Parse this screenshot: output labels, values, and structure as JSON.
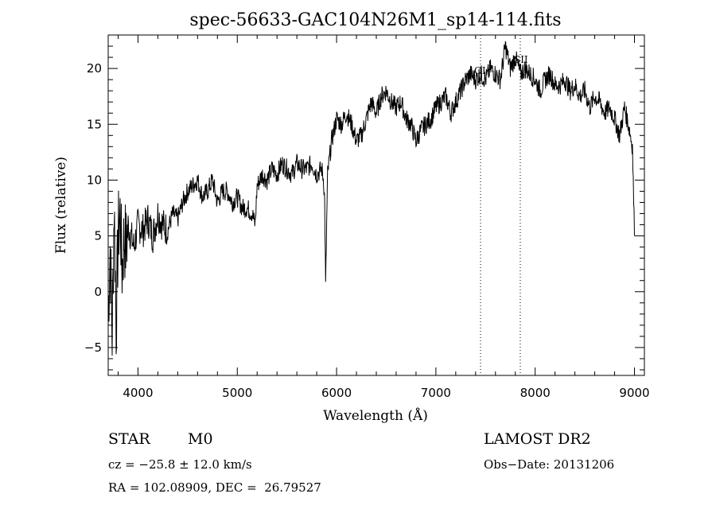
{
  "chart_data": {
    "type": "line",
    "title": "spec-56633-GAC104N26M1_sp14-114.fits",
    "xlabel": "Wavelength (Å)",
    "ylabel": "Flux (relative)",
    "xlim": [
      3700,
      9100
    ],
    "ylim": [
      -7.5,
      23
    ],
    "xticks": [
      4000,
      5000,
      6000,
      7000,
      8000,
      9000
    ],
    "yticks": [
      -5,
      0,
      5,
      10,
      15,
      20
    ],
    "grid": false,
    "legend": "none",
    "line_color": "#000000",
    "series": [
      {
        "x": [
          3700,
          3720,
          3740,
          3760,
          3780,
          3800,
          3820,
          3840,
          3860,
          3880,
          3900,
          3930,
          3960,
          4000,
          4050,
          4100,
          4150,
          4200,
          4250,
          4300,
          4350,
          4400,
          4450,
          4500,
          4550,
          4600,
          4650,
          4700,
          4750,
          4800,
          4850,
          4900,
          4950,
          5000,
          5050,
          5100,
          5150,
          5180,
          5200,
          5250,
          5300,
          5350,
          5400,
          5450,
          5500,
          5550,
          5600,
          5650,
          5700,
          5750,
          5800,
          5850,
          5870,
          5880,
          5890,
          5900,
          5910,
          5930,
          5950,
          6000,
          6050,
          6100,
          6150,
          6200,
          6250,
          6300,
          6350,
          6400,
          6450,
          6500,
          6550,
          6600,
          6650,
          6700,
          6750,
          6800,
          6850,
          6900,
          6950,
          7000,
          7050,
          7100,
          7150,
          7200,
          7250,
          7300,
          7350,
          7400,
          7450,
          7500,
          7550,
          7600,
          7650,
          7700,
          7750,
          7800,
          7850,
          7900,
          7950,
          8000,
          8050,
          8100,
          8150,
          8200,
          8250,
          8300,
          8350,
          8400,
          8450,
          8500,
          8550,
          8600,
          8650,
          8700,
          8750,
          8800,
          8850,
          8900,
          8950,
          8980,
          9000
        ],
        "y": [
          -2.0,
          4.0,
          -4.0,
          8.0,
          -3.0,
          5.0,
          7.0,
          2.0,
          5.0,
          4.0,
          6.0,
          5.0,
          4.0,
          6.0,
          5.5,
          6.5,
          5.0,
          7.0,
          6.0,
          5.5,
          7.0,
          6.5,
          8.0,
          9.0,
          9.5,
          10.0,
          8.5,
          9.0,
          10.0,
          8.0,
          9.0,
          9.0,
          8.0,
          8.5,
          7.5,
          7.5,
          7.0,
          6.0,
          9.5,
          10.5,
          10.0,
          11.0,
          10.5,
          11.5,
          11.0,
          10.5,
          11.5,
          11.0,
          11.0,
          11.5,
          10.5,
          11.0,
          10.0,
          8.0,
          0.5,
          6.0,
          10.5,
          12.0,
          13.5,
          15.5,
          15.0,
          16.0,
          15.0,
          13.5,
          14.0,
          15.5,
          17.0,
          16.0,
          17.5,
          18.0,
          17.0,
          16.5,
          17.0,
          15.5,
          15.0,
          13.5,
          14.5,
          15.0,
          15.5,
          16.5,
          17.0,
          17.5,
          16.0,
          17.0,
          18.0,
          19.0,
          19.5,
          19.0,
          19.5,
          19.0,
          20.0,
          19.5,
          19.0,
          22.0,
          20.0,
          21.0,
          19.5,
          20.0,
          19.5,
          19.0,
          18.0,
          19.0,
          19.5,
          18.5,
          18.5,
          19.0,
          18.0,
          18.5,
          17.5,
          18.0,
          16.5,
          17.5,
          17.0,
          16.0,
          16.5,
          15.5,
          14.0,
          16.5,
          14.5,
          13.0,
          5.0
        ]
      }
    ],
    "annotations": [
      {
        "label": "OI",
        "x": 7450,
        "y": 19.5
      },
      {
        "label": "SII",
        "x": 7850,
        "y": 20.5
      }
    ]
  },
  "info": {
    "object_class": "STAR",
    "subclass": "M0",
    "cz": "cz = −25.8 ± 12.0 km/s",
    "coords": "RA = 102.08909, DEC =  26.79527",
    "survey": "LAMOST DR2",
    "obs_date": "Obs−Date: 20131206"
  }
}
